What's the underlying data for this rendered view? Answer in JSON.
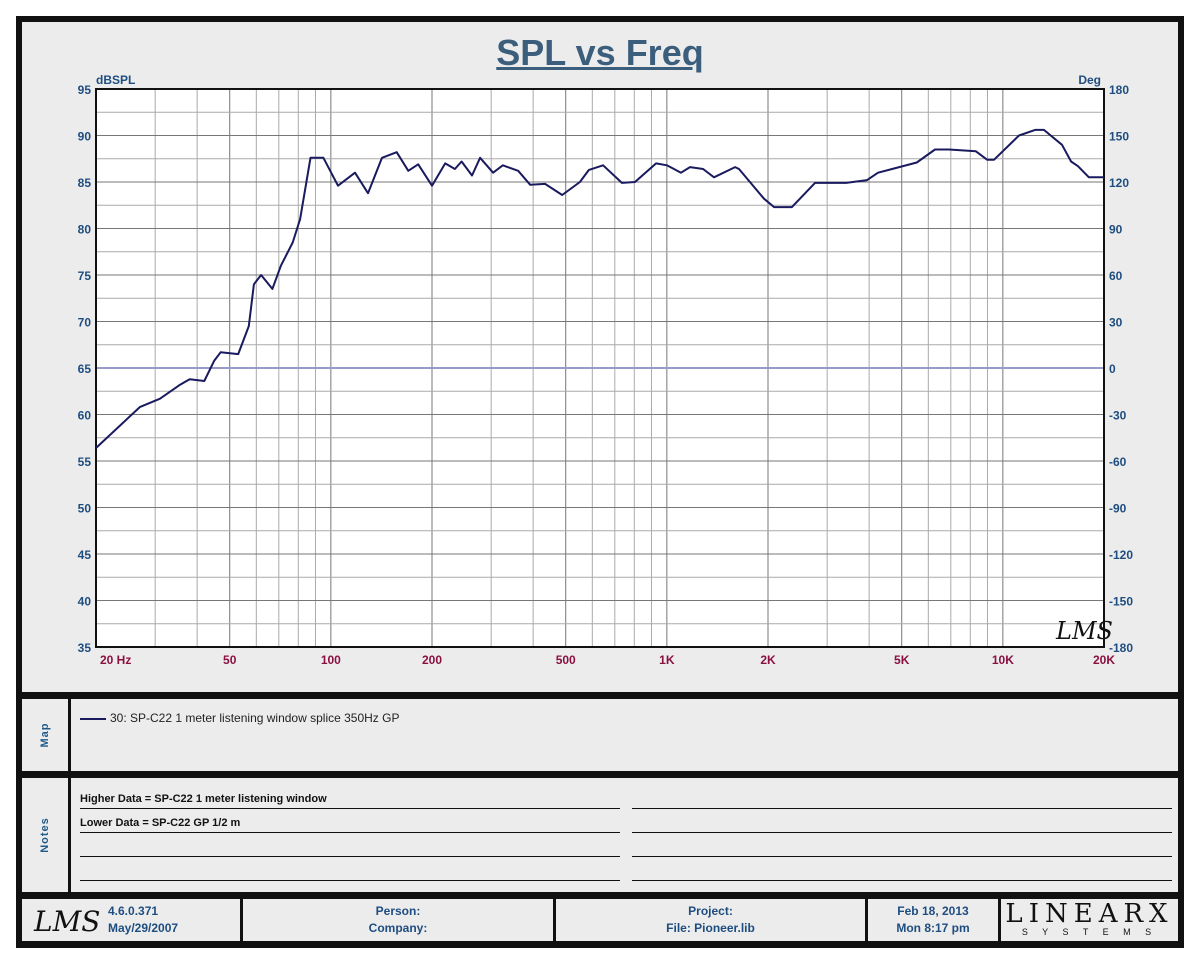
{
  "chart_data": {
    "type": "line",
    "title": "SPL vs Freq",
    "ylabel": "dBSPL",
    "y2label": "Deg",
    "xscale": "log",
    "xlim": [
      20,
      20000
    ],
    "ylim": [
      35,
      95
    ],
    "y2lim": [
      -180,
      180
    ],
    "xticks": [
      {
        "v": 20,
        "l": "20  Hz"
      },
      {
        "v": 50,
        "l": "50"
      },
      {
        "v": 100,
        "l": "100"
      },
      {
        "v": 200,
        "l": "200"
      },
      {
        "v": 500,
        "l": "500"
      },
      {
        "v": 1000,
        "l": "1K"
      },
      {
        "v": 2000,
        "l": "2K"
      },
      {
        "v": 5000,
        "l": "5K"
      },
      {
        "v": 10000,
        "l": "10K"
      },
      {
        "v": 20000,
        "l": "20K"
      }
    ],
    "yticks": [
      95,
      90,
      85,
      80,
      75,
      70,
      65,
      60,
      55,
      50,
      45,
      40,
      35
    ],
    "y2ticks": [
      180,
      150,
      120,
      90,
      60,
      30,
      0,
      -30,
      -60,
      -90,
      -120,
      -150,
      -180
    ],
    "grid": true,
    "series": [
      {
        "name": "30: SP-C22 1 meter listening window splice 350Hz GP",
        "color": "#1a1a5e",
        "x": [
          20,
          27,
          31,
          35.6,
          38,
          42,
          45,
          47,
          53,
          57,
          59,
          62,
          67,
          71,
          77,
          81,
          87,
          95,
          105,
          118,
          129,
          142,
          157,
          170,
          182,
          200,
          219,
          234,
          245,
          263,
          278,
          304,
          325,
          361,
          392,
          434,
          488,
          551,
          586,
          646,
          735,
          804,
          929,
          1000,
          1102,
          1172,
          1282,
          1381,
          1596,
          1640,
          1946,
          2085,
          2356,
          2760,
          3415,
          3945,
          4250,
          5546,
          6282,
          6915,
          8316,
          8974,
          9418,
          11170,
          12470,
          13250,
          15000,
          15960,
          16740,
          18040,
          20000
        ],
        "y": [
          56.4,
          60.8,
          61.7,
          63.2,
          63.8,
          63.6,
          65.8,
          66.7,
          66.5,
          69.5,
          74,
          75,
          73.5,
          76,
          78.5,
          81,
          87.6,
          87.6,
          84.6,
          86,
          83.8,
          87.6,
          88.2,
          86.2,
          86.9,
          84.6,
          87,
          86.4,
          87.2,
          85.7,
          87.6,
          86,
          86.8,
          86.2,
          84.7,
          84.8,
          83.6,
          85,
          86.3,
          86.8,
          84.9,
          85,
          87,
          86.8,
          86,
          86.6,
          86.4,
          85.5,
          86.6,
          86.4,
          83.2,
          82.3,
          82.3,
          84.9,
          84.9,
          85.2,
          86,
          87.1,
          88.5,
          88.5,
          88.3,
          87.4,
          87.4,
          90,
          90.6,
          90.6,
          89,
          87.2,
          86.7,
          85.5,
          85.5
        ]
      }
    ],
    "reference_line": {
      "y": 65,
      "color": "#9999cc"
    }
  },
  "map": {
    "label": "Map",
    "legend": "30: SP-C22 1 meter listening window splice 350Hz GP"
  },
  "notes": {
    "label": "Notes",
    "lines": [
      "Higher Data = SP-C22 1 meter listening window",
      "Lower  Data = SP-C22 GP 1/2 m"
    ]
  },
  "footer": {
    "logo": "LMS",
    "version": "4.6.0.371",
    "build_date": "May/29/2007",
    "person": "Person:",
    "company": "Company:",
    "project": "Project:",
    "file": "File: Pioneer.lib",
    "date": "Feb 18, 2013",
    "time": "Mon  8:17 pm",
    "brand": "LINEARX",
    "brand_sub": "S Y S T E M S"
  },
  "watermark": "LMS"
}
